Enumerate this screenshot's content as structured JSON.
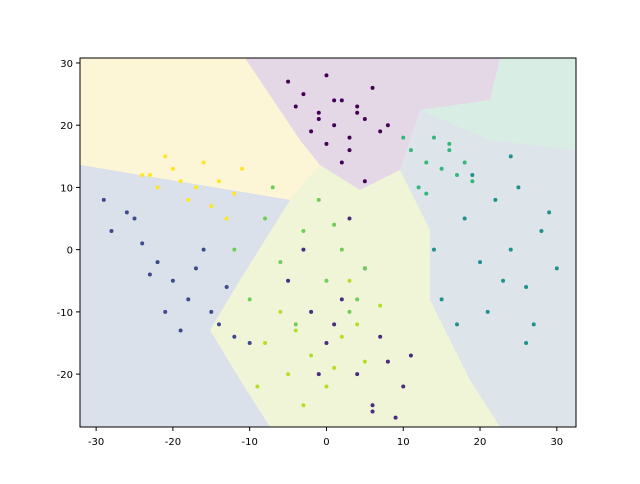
{
  "chart_data": {
    "type": "scatter",
    "xlim": [
      -32.1,
      32.5
    ],
    "ylim": [
      -28.5,
      30.8
    ],
    "xticks": [
      -30,
      -20,
      -10,
      0,
      10,
      20,
      30
    ],
    "yticks": [
      -20,
      -10,
      0,
      10,
      20,
      30
    ],
    "series": [
      {
        "color": "#440154",
        "x": [
          -3,
          -1,
          0,
          1,
          2,
          3,
          4,
          5,
          6,
          -4,
          -2,
          0,
          2,
          4,
          7,
          -5,
          1,
          3,
          -1,
          5,
          8
        ],
        "values": [
          25,
          22,
          28,
          20,
          24,
          18,
          23,
          21,
          26,
          23,
          19,
          17,
          14,
          22,
          19,
          27,
          24,
          16,
          21,
          11,
          20
        ]
      },
      {
        "color": "#3e4a89",
        "x": [
          -28,
          -25,
          -22,
          -20,
          -18,
          -15,
          -13,
          -24,
          -21,
          -17,
          -14,
          -12,
          -26,
          -19,
          -16,
          -23,
          -10,
          -29
        ],
        "values": [
          3,
          5,
          -2,
          -5,
          -8,
          -10,
          -6,
          1,
          -10,
          -3,
          -12,
          -14,
          6,
          -13,
          0,
          -4,
          -15,
          8
        ]
      },
      {
        "color": "#472d7b",
        "x": [
          -5,
          -2,
          0,
          2,
          4,
          6,
          8,
          10,
          -3,
          1,
          5,
          9,
          3,
          7,
          -1,
          11,
          6
        ],
        "values": [
          -5,
          -10,
          -15,
          -8,
          -20,
          -25,
          -18,
          -22,
          0,
          -12,
          -3,
          -27,
          5,
          -14,
          -20,
          -17,
          -26
        ]
      },
      {
        "color": "#21918c",
        "x": [
          18,
          20,
          22,
          24,
          26,
          28,
          30,
          15,
          17,
          21,
          25,
          27,
          29,
          19,
          23,
          14,
          26,
          24
        ],
        "values": [
          5,
          -2,
          8,
          0,
          -6,
          3,
          -3,
          -8,
          -12,
          -10,
          10,
          -12,
          6,
          12,
          -5,
          0,
          -15,
          15
        ]
      },
      {
        "color": "#35b779",
        "x": [
          11,
          13,
          15,
          17,
          12,
          14,
          16,
          18,
          10,
          19,
          13,
          16
        ],
        "values": [
          16,
          14,
          13,
          12,
          10,
          18,
          16,
          14,
          18,
          11,
          9,
          17
        ]
      },
      {
        "color": "#6ece58",
        "x": [
          -10,
          -6,
          -3,
          0,
          3,
          -8,
          -4,
          2,
          5,
          -12,
          -1,
          4,
          -7,
          1
        ],
        "values": [
          -8,
          -2,
          3,
          -5,
          -10,
          5,
          -12,
          0,
          -3,
          0,
          8,
          -8,
          10,
          4
        ]
      },
      {
        "color": "#b5de2b",
        "x": [
          -8,
          -5,
          -2,
          0,
          2,
          5,
          -6,
          -3,
          1,
          4,
          -9,
          3,
          7,
          -4
        ],
        "values": [
          -15,
          -20,
          -17,
          -22,
          -14,
          -18,
          -10,
          -25,
          -19,
          -12,
          -22,
          -5,
          -9,
          -13
        ]
      },
      {
        "color": "#fde725",
        "x": [
          -24,
          -22,
          -20,
          -18,
          -16,
          -14,
          -12,
          -21,
          -17,
          -13,
          -19,
          -15,
          -23,
          -11
        ],
        "values": [
          12,
          10,
          13,
          8,
          14,
          11,
          9,
          15,
          10,
          5,
          11,
          7,
          12,
          13
        ]
      }
    ]
  }
}
